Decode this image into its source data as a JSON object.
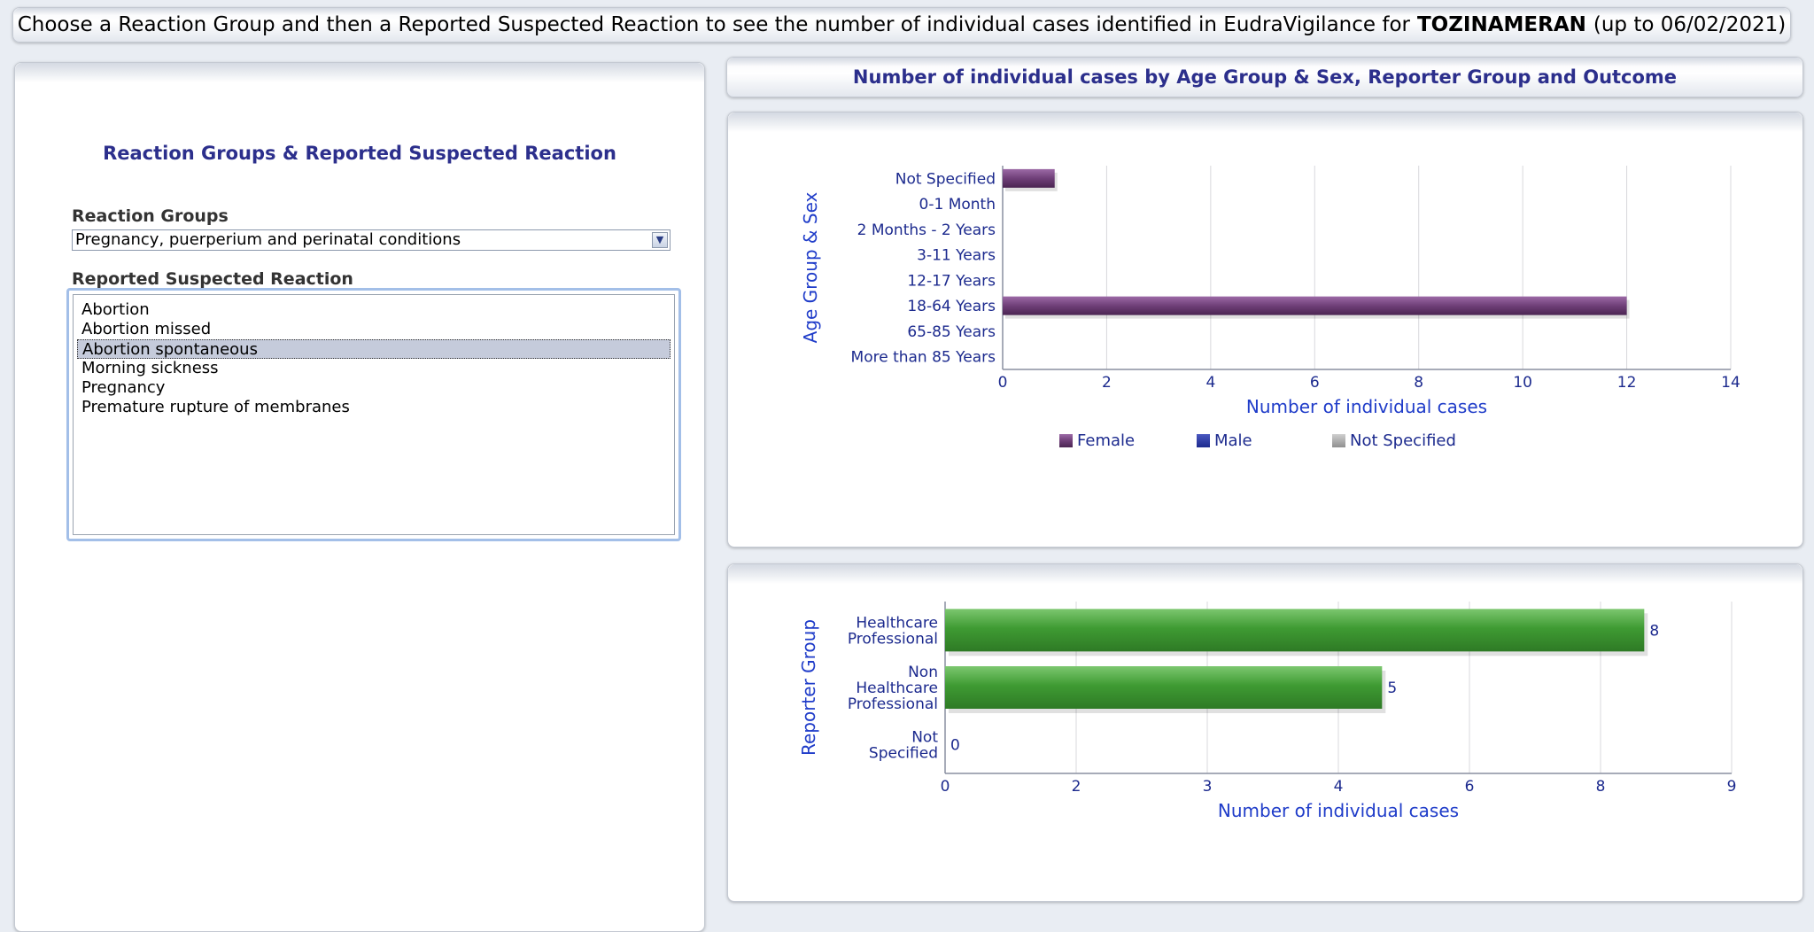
{
  "header": {
    "prefix": "Choose a Reaction Group and then a Reported Suspected Reaction to see the number of individual cases identified in EudraVigilance for",
    "drug": "TOZINAMERAN",
    "suffix": "(up to 06/02/2021)"
  },
  "left_panel": {
    "title": "Reaction Groups & Reported Suspected Reaction",
    "reaction_groups_label": "Reaction Groups",
    "reaction_group_selected": "Pregnancy, puerperium and perinatal conditions",
    "reported_reaction_label": "Reported Suspected Reaction",
    "reactions": [
      "Abortion",
      "Abortion missed",
      "Abortion spontaneous",
      "Morning sickness",
      "Pregnancy",
      "Premature rupture of membranes"
    ],
    "selected_reaction": "Abortion spontaneous",
    "icons": {
      "dropdown": "chevron-down-icon"
    }
  },
  "right_panel": {
    "title": "Number of individual cases by Age Group & Sex, Reporter Group and Outcome"
  },
  "chart_data": [
    {
      "type": "bar",
      "orientation": "horizontal",
      "categories": [
        "Not Specified",
        "0-1 Month",
        "2 Months - 2 Years",
        "3-11 Years",
        "12-17 Years",
        "18-64 Years",
        "65-85 Years",
        "More than 85 Years"
      ],
      "series": [
        {
          "name": "Female",
          "color": "#6f3f78",
          "values": [
            1,
            0,
            0,
            0,
            0,
            12,
            0,
            0
          ]
        },
        {
          "name": "Male",
          "color": "#1c2a8e",
          "values": [
            0,
            0,
            0,
            0,
            0,
            0,
            0,
            0
          ]
        },
        {
          "name": "Not Specified",
          "color": "#a9a9a9",
          "values": [
            0,
            0,
            0,
            0,
            0,
            0,
            0,
            0
          ]
        }
      ],
      "xlabel": "Number of individual cases",
      "ylabel": "Age Group & Sex",
      "xlim": [
        0,
        14
      ],
      "xticks": [
        "0",
        "2",
        "4",
        "6",
        "8",
        "10",
        "12",
        "14"
      ],
      "grid": "vertical",
      "legend": "bottom"
    },
    {
      "type": "bar",
      "orientation": "horizontal",
      "categories": [
        "Healthcare Professional",
        "Non Healthcare Professional",
        "Not Specified"
      ],
      "values": [
        8,
        5,
        0
      ],
      "data_labels": [
        "8",
        "5",
        "0"
      ],
      "color": "#3f9b33",
      "xlabel": "Number of individual cases",
      "ylabel": "Reporter Group",
      "xlim": [
        0,
        9
      ],
      "xticks": [
        "0",
        "2",
        "3",
        "4",
        "6",
        "8",
        "9"
      ],
      "grid": "vertical"
    }
  ]
}
